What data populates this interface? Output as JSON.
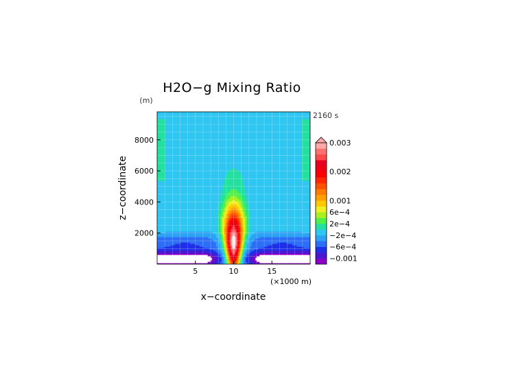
{
  "chart_data": {
    "type": "heatmap",
    "title": "H2O−g Mixing Ratio",
    "xlabel": "x−coordinate",
    "ylabel": "z−coordinate",
    "x_unit": "(×1000 m)",
    "y_unit": "(m)",
    "time": "2160 s",
    "xlim": [
      0,
      20
    ],
    "ylim": [
      0,
      9800
    ],
    "x_ticks": [
      "5",
      "10",
      "15"
    ],
    "x_tick_values": [
      5,
      10,
      15
    ],
    "y_ticks": [
      "2000",
      "4000",
      "6000",
      "8000"
    ],
    "y_tick_values": [
      2000,
      4000,
      6000,
      8000
    ],
    "grid": true,
    "legend": "right",
    "colorbar": {
      "labels": [
        "0.003",
        "0.002",
        "0.001",
        "6e−4",
        "2e−4",
        "−2e−4",
        "−6e−4",
        "−0.001"
      ],
      "label_values": [
        0.003,
        0.002,
        0.001,
        0.0006,
        0.0002,
        -0.0002,
        -0.0006,
        -0.001
      ],
      "levels": [
        -0.0012,
        -0.001,
        -0.0008,
        -0.0006,
        -0.0004,
        -0.0002,
        0,
        0.0002,
        0.0004,
        0.0006,
        0.0008,
        0.001,
        0.0012,
        0.0014,
        0.0016,
        0.0018,
        0.002,
        0.0022,
        0.0024,
        0.0026,
        0.0028,
        0.003
      ],
      "colors": [
        "#8a00c8",
        "#4a18d0",
        "#1f2fe8",
        "#2c6ef7",
        "#2ca2f5",
        "#30c6f2",
        "#22e0a0",
        "#4ef04a",
        "#a8f020",
        "#f0f020",
        "#ffc800",
        "#ffa000",
        "#ff7a00",
        "#ff5000",
        "#ff2800",
        "#ff0000",
        "#f00010",
        "#e80020",
        "#ff4848",
        "#ff7070",
        "#ffa8a8"
      ],
      "extend": "max"
    },
    "field_notes": "Moisture perturbation: warm plume centered at x=10 peaking ~0.003 near z≈1400 m, negative anomalies near surface on both sides, background ≈ −2e−4 to 0."
  }
}
